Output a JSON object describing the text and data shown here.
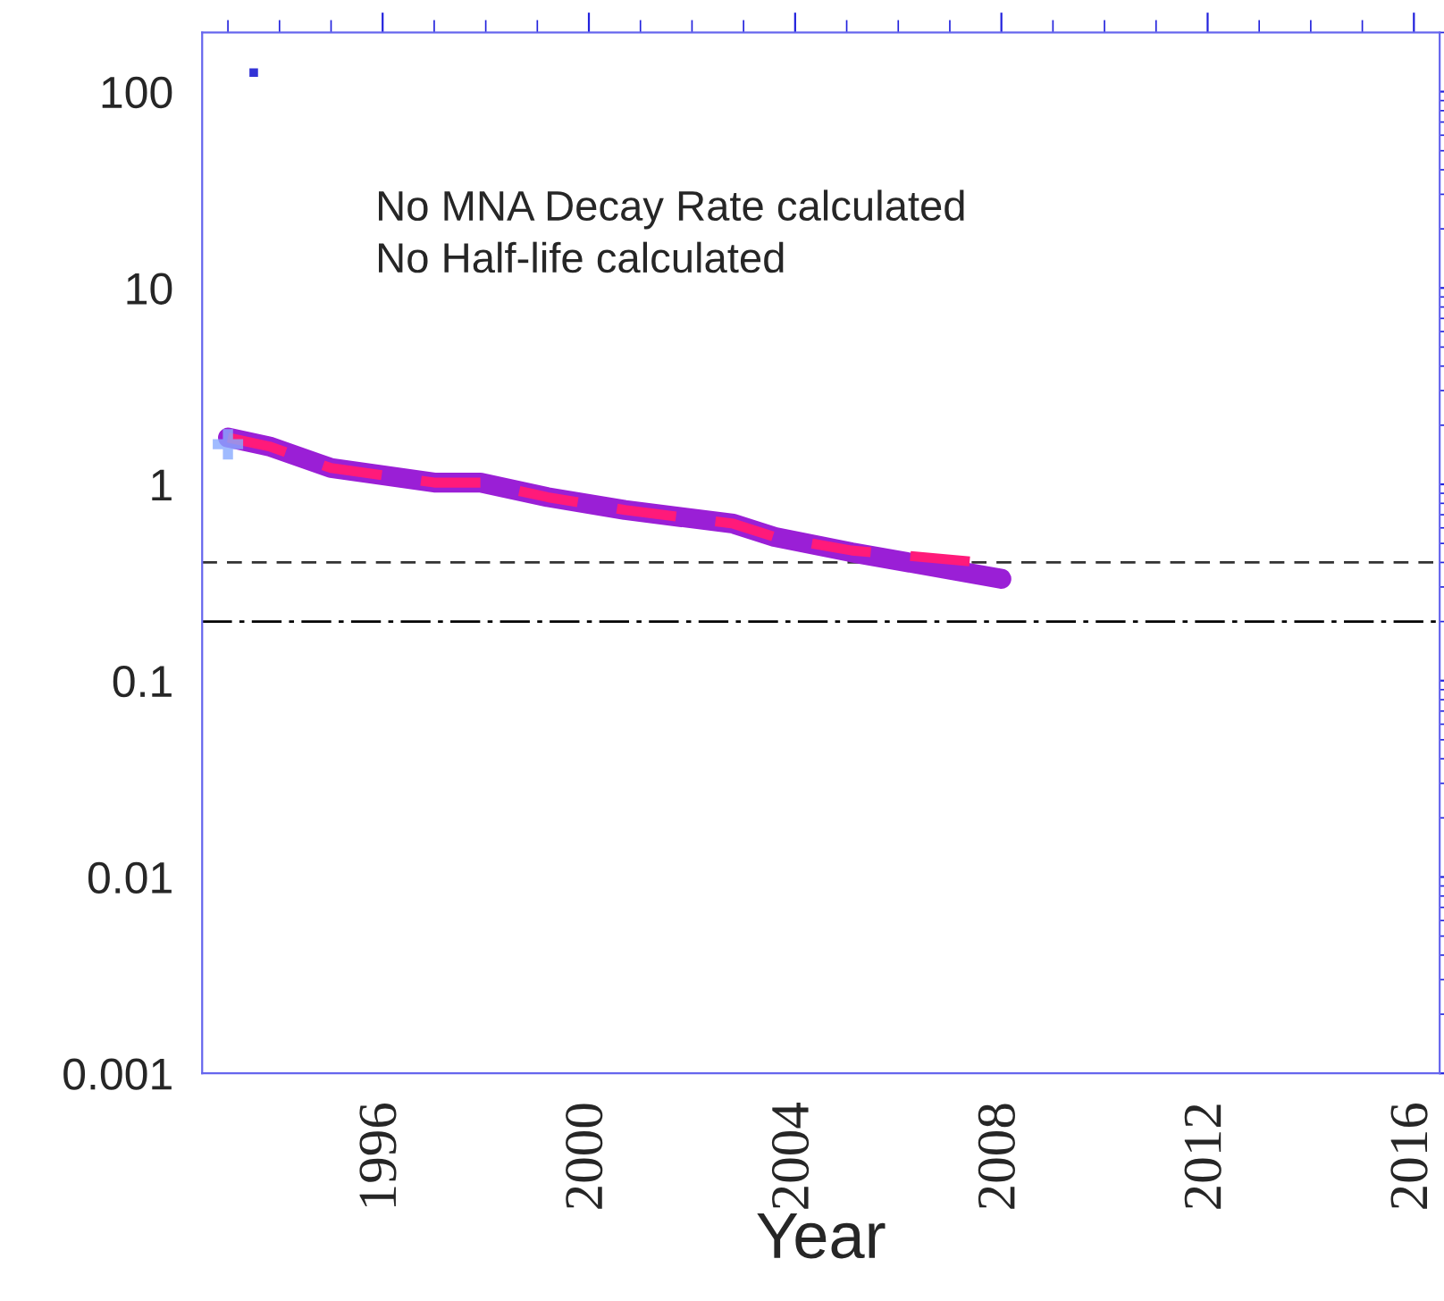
{
  "chart_data": {
    "type": "line",
    "xlabel": "Year",
    "log": "y",
    "xlim": [
      1992.5,
      2016.5
    ],
    "xticks": [
      1996,
      2000,
      2004,
      2008,
      2012,
      2016
    ],
    "ylim": [
      0.001,
      200
    ],
    "yticks": [
      0.001,
      0.01,
      0.1,
      1,
      10,
      100
    ],
    "grid": false,
    "legend": false,
    "series": [
      {
        "color": "#9a1fd6",
        "line_style": "solid",
        "x": [
          1993.0,
          1993.8,
          1995.0,
          1997.0,
          1997.9,
          1999.2,
          2000.7,
          2002.8,
          2003.6,
          2005.1,
          2008.0
        ],
        "values": [
          1.73,
          1.56,
          1.21,
          1.02,
          1.02,
          0.86,
          0.74,
          0.63,
          0.54,
          0.45,
          0.33
        ]
      },
      {
        "color": "#ff1a7a",
        "line_style": "dashed",
        "x": [
          1993.0,
          1993.8,
          1995.0,
          1997.0,
          1997.9,
          1999.2,
          2000.7,
          2002.8,
          2003.6,
          2005.1,
          2007.6
        ],
        "values": [
          1.73,
          1.56,
          1.21,
          1.02,
          1.02,
          0.86,
          0.74,
          0.63,
          0.54,
          0.46,
          0.4
        ]
      },
      {
        "type": "scatter",
        "color": "#88aaff",
        "marker": "cross",
        "x": [
          1993.0
        ],
        "values": [
          1.6
        ]
      },
      {
        "type": "scatter",
        "color": "#0000cc",
        "marker": "square",
        "x": [
          1993.5
        ],
        "values": [
          125
        ]
      }
    ],
    "ref_lines": [
      {
        "axis": "y",
        "value": 0.4,
        "line_style": "dashed",
        "color": "#333333"
      },
      {
        "axis": "y",
        "value": 0.2,
        "line_style": "dashdot",
        "color": "#000000"
      }
    ],
    "annotations": [
      {
        "text": "No MNA Decay Rate calculated"
      },
      {
        "text": "No Half-life calculated"
      }
    ]
  }
}
